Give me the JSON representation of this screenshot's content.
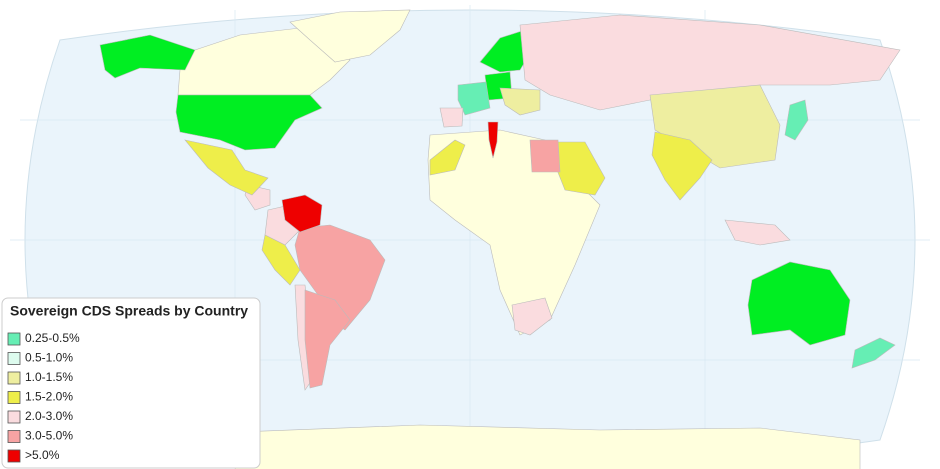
{
  "legend": {
    "title": "Sovereign CDS Spreads by Country",
    "items": [
      {
        "label": "0.25-0.5%",
        "color": "#66eeb4"
      },
      {
        "label": "0.5-1.0%",
        "color": "#ddfbee"
      },
      {
        "label": "1.0-1.5%",
        "color": "#eeeea0"
      },
      {
        "label": "1.5-2.0%",
        "color": "#eeee4a"
      },
      {
        "label": "2.0-3.0%",
        "color": "#fadcdf"
      },
      {
        "label": "3.0-5.0%",
        "color": "#f7a3a3"
      },
      {
        "label": ">5.0%",
        "color": "#ee0000"
      }
    ]
  }
}
